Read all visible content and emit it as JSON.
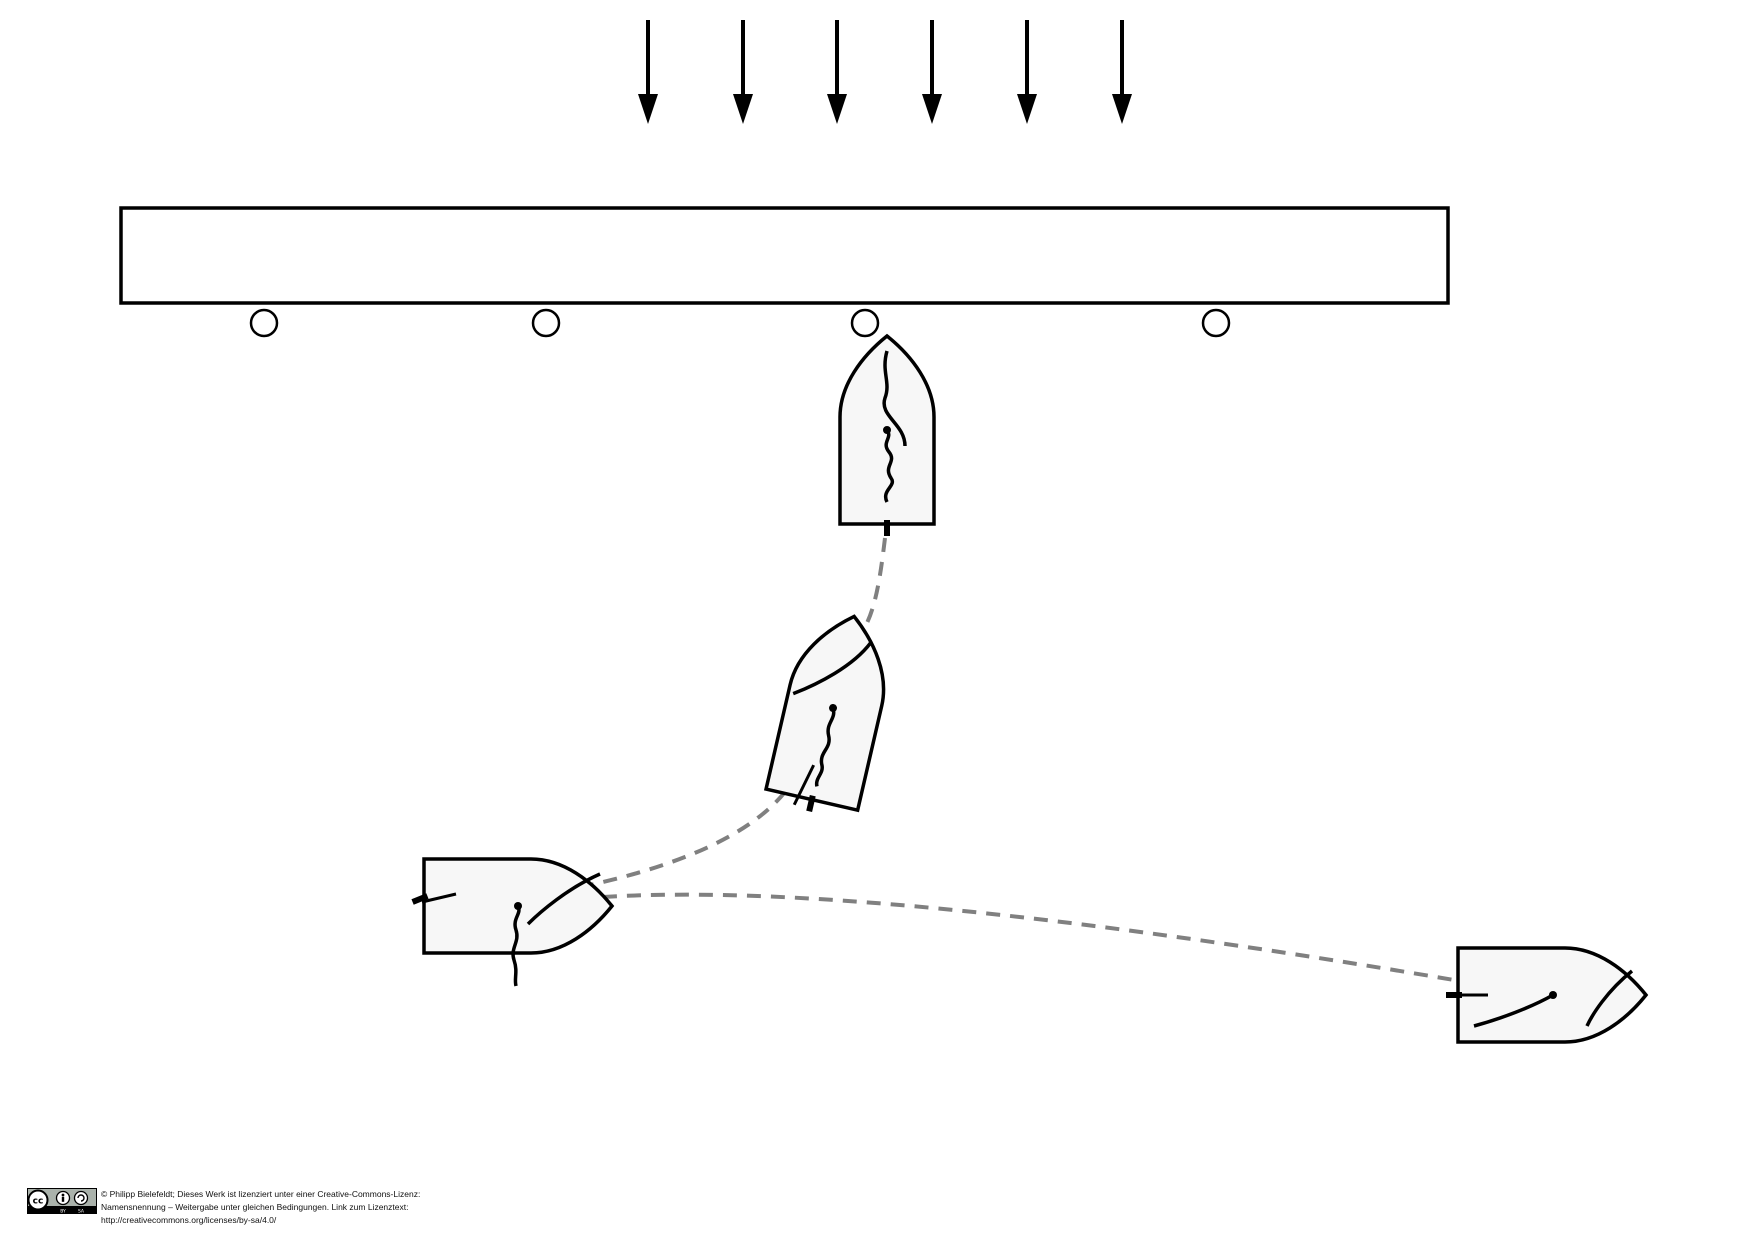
{
  "colors": {
    "stroke": "#000000",
    "hull_fill": "#f7f7f7",
    "track": "#808080",
    "background": "#ffffff"
  },
  "diagram": {
    "wind_arrow_count": 6,
    "mark_buoy_count": 4,
    "boat_count": 4
  },
  "license": {
    "badge_icon": "cc-by-sa-icon",
    "line1": "© Philipp Bielefeldt; Dieses Werk ist lizenziert unter einer Creative-Commons-Lizenz:",
    "line2": "Namensnennung – Weitergabe unter gleichen Bedingungen. Link zum Lizenztext:",
    "line3": "http://creativecommons.org/licenses/by-sa/4.0/"
  }
}
